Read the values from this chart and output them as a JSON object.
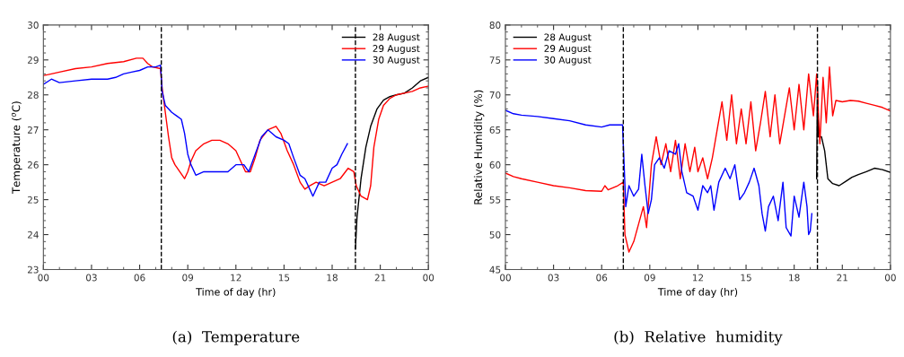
{
  "chart_data": [
    {
      "type": "line",
      "title": "(a)  Temperature",
      "xlabel": "Time of day (hr)",
      "ylabel": "Temperature ($^{o}$C)",
      "legend": "top right",
      "grid": false,
      "xlim": [
        0,
        24
      ],
      "xticks": [
        {
          "value": 0,
          "label": "00"
        },
        {
          "value": 3,
          "label": "03"
        },
        {
          "value": 6,
          "label": "06"
        },
        {
          "value": 9,
          "label": "09"
        },
        {
          "value": 12,
          "label": "12"
        },
        {
          "value": 15,
          "label": "15"
        },
        {
          "value": 18,
          "label": "18"
        },
        {
          "value": 21,
          "label": "21"
        },
        {
          "value": 24,
          "label": "00"
        }
      ],
      "ylim": [
        23,
        30
      ],
      "yticks": [
        23,
        24,
        25,
        26,
        27,
        28,
        29,
        30
      ],
      "ref_lines": [
        {
          "axis": "x",
          "value": 7.35,
          "color": "#000000",
          "line_style": "dashed"
        },
        {
          "axis": "x",
          "value": 19.45,
          "color": "#000000",
          "line_style": "dashed"
        }
      ],
      "series": [
        {
          "name": "28 August",
          "color": "#000000",
          "x": [
            19.45,
            19.55,
            19.8,
            20.1,
            20.4,
            20.8,
            21.2,
            21.6,
            22,
            22.5,
            23,
            23.5,
            24
          ],
          "values": [
            23.6,
            24.5,
            25.6,
            26.5,
            27.1,
            27.6,
            27.85,
            27.95,
            28.0,
            28.05,
            28.2,
            28.4,
            28.5
          ]
        },
        {
          "name": "29 August",
          "color": "#ff0000",
          "x": [
            0,
            0.5,
            1,
            2,
            3,
            4,
            5,
            5.8,
            6.2,
            6.5,
            6.8,
            7.3,
            7.4,
            7.6,
            7.8,
            8.0,
            8.2,
            8.5,
            8.8,
            9.0,
            9.2,
            9.5,
            10,
            10.5,
            11,
            11.5,
            12.0,
            12.3,
            12.6,
            12.9,
            13.2,
            13.5,
            14,
            14.5,
            14.8,
            15.2,
            15.6,
            16,
            16.3,
            16.6,
            17,
            17.5,
            18,
            18.5,
            19,
            19.35,
            19.5,
            19.8,
            20.2,
            20.4,
            20.6,
            20.9,
            21.2,
            21.6,
            22,
            22.5,
            23,
            23.5,
            24
          ],
          "values": [
            28.55,
            28.6,
            28.65,
            28.75,
            28.8,
            28.9,
            28.95,
            29.05,
            29.05,
            28.9,
            28.8,
            28.75,
            28.2,
            27.5,
            26.8,
            26.2,
            26.0,
            25.8,
            25.6,
            25.8,
            26.1,
            26.4,
            26.6,
            26.7,
            26.7,
            26.6,
            26.4,
            26.1,
            25.8,
            25.8,
            26.2,
            26.7,
            27.0,
            27.1,
            26.9,
            26.4,
            26.0,
            25.5,
            25.3,
            25.4,
            25.5,
            25.4,
            25.5,
            25.6,
            25.9,
            25.8,
            25.4,
            25.1,
            25.0,
            25.4,
            26.5,
            27.3,
            27.7,
            27.9,
            28.0,
            28.05,
            28.1,
            28.2,
            28.25
          ]
        },
        {
          "name": "30 August",
          "color": "#0000ff",
          "x": [
            0,
            0.5,
            1,
            2,
            3,
            4,
            4.5,
            5,
            5.5,
            6,
            6.5,
            7,
            7.3,
            7.4,
            7.6,
            8,
            8.3,
            8.6,
            8.8,
            9.0,
            9.2,
            9.5,
            10,
            10.5,
            11,
            11.5,
            12,
            12.5,
            12.8,
            13.2,
            13.6,
            14,
            14.5,
            15,
            15.3,
            15.6,
            16,
            16.3,
            16.6,
            16.8,
            17.2,
            17.6,
            18,
            18.3,
            18.6,
            18.95
          ],
          "values": [
            28.3,
            28.45,
            28.35,
            28.4,
            28.45,
            28.45,
            28.5,
            28.6,
            28.65,
            28.7,
            28.8,
            28.8,
            28.85,
            28.1,
            27.7,
            27.5,
            27.4,
            27.3,
            26.9,
            26.3,
            26.0,
            25.7,
            25.8,
            25.8,
            25.8,
            25.8,
            26.0,
            26.0,
            25.8,
            26.3,
            26.8,
            27.0,
            26.8,
            26.7,
            26.6,
            26.2,
            25.7,
            25.6,
            25.3,
            25.1,
            25.5,
            25.5,
            25.9,
            26.0,
            26.3,
            26.6
          ]
        }
      ]
    },
    {
      "type": "line",
      "title": "(b)  Relative  humidity",
      "xlabel": "Time of day (hr)",
      "ylabel": "Relative Humidity (%)",
      "legend": "top left",
      "grid": false,
      "xlim": [
        0,
        24
      ],
      "xticks": [
        {
          "value": 0,
          "label": "00"
        },
        {
          "value": 3,
          "label": "03"
        },
        {
          "value": 6,
          "label": "06"
        },
        {
          "value": 9,
          "label": "09"
        },
        {
          "value": 12,
          "label": "12"
        },
        {
          "value": 15,
          "label": "15"
        },
        {
          "value": 18,
          "label": "18"
        },
        {
          "value": 21,
          "label": "21"
        },
        {
          "value": 24,
          "label": "00"
        }
      ],
      "ylim": [
        45,
        80
      ],
      "yticks": [
        45,
        50,
        55,
        60,
        65,
        70,
        75,
        80
      ],
      "ref_lines": [
        {
          "axis": "x",
          "value": 7.35,
          "color": "#000000",
          "line_style": "dashed"
        },
        {
          "axis": "x",
          "value": 19.45,
          "color": "#000000",
          "line_style": "dashed"
        }
      ],
      "series": [
        {
          "name": "28 August",
          "color": "#000000",
          "x": [
            19.4,
            19.45,
            19.5,
            19.7,
            19.9,
            20.1,
            20.4,
            20.8,
            21.2,
            21.6,
            22,
            22.5,
            23,
            23.5,
            24
          ],
          "values": [
            58,
            72,
            64,
            64,
            62,
            58,
            57.3,
            57.0,
            57.6,
            58.2,
            58.6,
            59,
            59.5,
            59.3,
            58.9
          ]
        },
        {
          "name": "29 August",
          "color": "#ff0000",
          "x": [
            0,
            0.5,
            1,
            2,
            3,
            4,
            5,
            6,
            6.2,
            6.4,
            7,
            7.35,
            7.45,
            7.7,
            8,
            8.3,
            8.6,
            8.8,
            9.1,
            9.4,
            9.7,
            10,
            10.3,
            10.6,
            10.9,
            11.2,
            11.5,
            11.8,
            12.0,
            12.3,
            12.6,
            12.9,
            13.2,
            13.5,
            13.8,
            14.1,
            14.4,
            14.7,
            15,
            15.3,
            15.6,
            15.9,
            16.2,
            16.5,
            16.8,
            17.1,
            17.4,
            17.7,
            18,
            18.3,
            18.6,
            18.9,
            19.2,
            19.4,
            19.6,
            19.8,
            20.0,
            20.2,
            20.4,
            20.6,
            21,
            21.5,
            22,
            22.5,
            23,
            23.5,
            24
          ],
          "values": [
            58.8,
            58.3,
            58.0,
            57.5,
            57.0,
            56.7,
            56.3,
            56.2,
            57,
            56.4,
            57,
            57.5,
            50,
            47.5,
            49,
            51.5,
            54,
            51,
            60,
            64,
            60,
            63,
            59,
            63.5,
            58,
            63,
            59,
            62.5,
            59,
            61,
            58,
            61,
            65,
            69,
            63.5,
            70,
            63,
            68,
            63,
            69,
            62,
            66,
            70.5,
            64,
            70,
            63,
            67,
            71,
            65,
            71.5,
            65,
            73,
            67,
            73,
            63,
            72.5,
            66,
            74,
            67,
            69.2,
            69,
            69.2,
            69.1,
            68.8,
            68.5,
            68.2,
            67.7
          ]
        },
        {
          "name": "30 August",
          "color": "#0000ff",
          "x": [
            0,
            0.5,
            1,
            2,
            3,
            4,
            5,
            6,
            6.5,
            7.3,
            7.4,
            7.5,
            7.7,
            8,
            8.3,
            8.5,
            8.7,
            8.9,
            9.1,
            9.3,
            9.6,
            9.9,
            10.2,
            10.6,
            10.8,
            11,
            11.3,
            11.7,
            12,
            12.3,
            12.6,
            12.8,
            13.0,
            13.3,
            13.7,
            14,
            14.3,
            14.6,
            14.9,
            15.2,
            15.5,
            15.8,
            16,
            16.2,
            16.4,
            16.7,
            17,
            17.3,
            17.5,
            17.8,
            18,
            18.3,
            18.6,
            18.8,
            18.9,
            19.0,
            19.1
          ],
          "values": [
            67.8,
            67.3,
            67.1,
            66.9,
            66.6,
            66.3,
            65.7,
            65.4,
            65.7,
            65.7,
            60,
            54,
            57,
            55.5,
            56.5,
            61.5,
            57,
            53,
            55,
            60,
            61,
            59.5,
            62,
            61.5,
            63,
            59,
            56,
            55.5,
            53.5,
            57,
            56,
            57,
            53.5,
            57.5,
            59.5,
            58,
            60,
            55,
            56,
            57.5,
            59.5,
            57,
            53,
            50.5,
            54,
            55.5,
            52,
            57.5,
            51,
            49.8,
            55.5,
            52.5,
            57.5,
            54,
            50,
            50.5,
            53
          ]
        }
      ]
    }
  ]
}
